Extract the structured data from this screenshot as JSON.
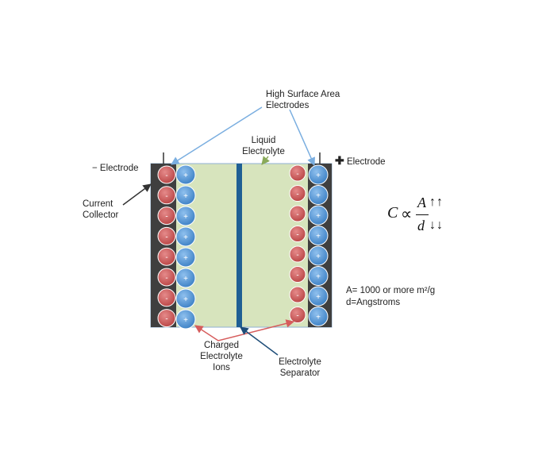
{
  "labels": {
    "high_surface_area": [
      "High Surface Area",
      "Electrodes"
    ],
    "liquid_electrolyte": [
      "Liquid",
      "Electrolyte"
    ],
    "neg_electrode": "− Electrode",
    "pos_electrode_sign": "✚",
    "pos_electrode": "Electrode",
    "current_collector": [
      "Current",
      "Collector"
    ],
    "charged_ions": [
      "Charged",
      "Electrolyte",
      "Ions"
    ],
    "separator": [
      "Electrolyte",
      "Separator"
    ]
  },
  "formula": {
    "capacitance": "C",
    "proportional": "∝",
    "numerator": "A",
    "denominator": "d",
    "up_arrows": "↑↑",
    "down_arrows": "↓↓"
  },
  "notes": {
    "area_line": "A= 1000 or more m²/g",
    "distance_line": "d=Angstroms"
  },
  "ion_signs": {
    "negative": "-",
    "positive": "+"
  },
  "colors": {
    "collector": "#3f3f3f",
    "electrolyte": "#d7e4bd",
    "separator": "#1f5f94",
    "negative_ion": "#cc5555",
    "positive_ion": "#4e95d9",
    "outline": "#7fa3c9",
    "pointer_blue": "#7aaee0",
    "pointer_red": "#d65c5c",
    "pointer_green": "#8aaa5a",
    "pointer_dark": "#333333",
    "pointer_navy": "#1f4e79"
  },
  "ion_counts": {
    "left_negative": 8,
    "left_positive": 8,
    "right_negative": 8,
    "right_positive": 8
  }
}
